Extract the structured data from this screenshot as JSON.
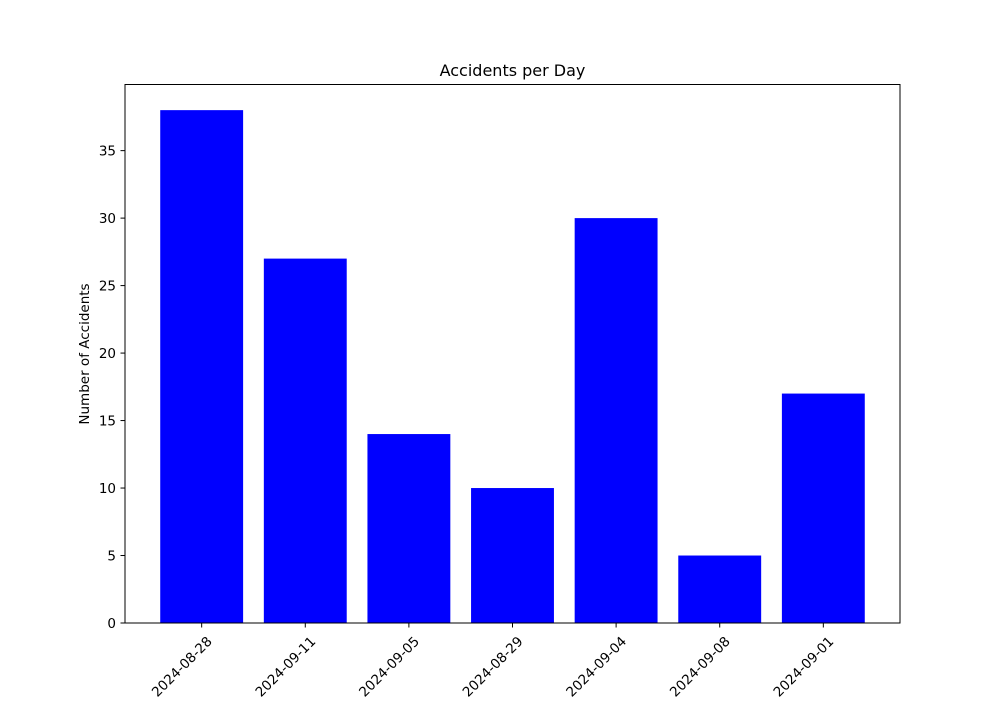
{
  "chart_data": {
    "type": "bar",
    "title": "Accidents per Day",
    "xlabel": "",
    "ylabel": "Number of Accidents",
    "categories": [
      "2024-08-28",
      "2024-09-11",
      "2024-09-05",
      "2024-08-29",
      "2024-09-04",
      "2024-09-08",
      "2024-09-01"
    ],
    "values": [
      38,
      27,
      14,
      10,
      30,
      5,
      17
    ],
    "ylim": [
      0,
      39.9
    ],
    "yticks": [
      0,
      5,
      10,
      15,
      20,
      25,
      30,
      35
    ],
    "bar_color": "#0000ff",
    "grid": false,
    "legend": "none"
  }
}
